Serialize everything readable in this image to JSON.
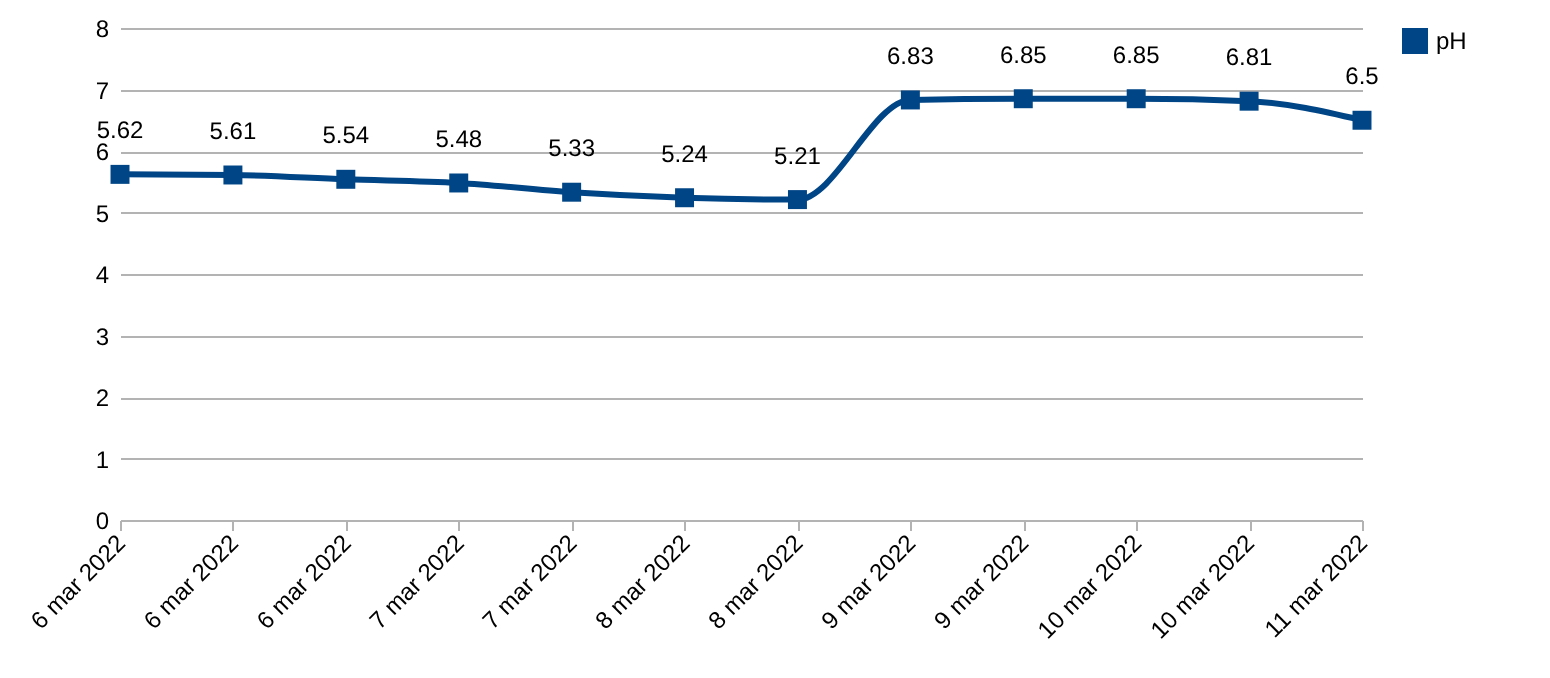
{
  "chart_data": {
    "type": "line",
    "categories": [
      "6 mar 2022",
      "6 mar 2022",
      "6 mar 2022",
      "7 mar 2022",
      "7 mar 2022",
      "8 mar 2022",
      "8 mar 2022",
      "9 mar 2022",
      "9 mar 2022",
      "10 mar 2022",
      "10 mar 2022",
      "11 mar 2022"
    ],
    "series": [
      {
        "name": "pH",
        "color": "#004586",
        "values": [
          5.62,
          5.61,
          5.54,
          5.48,
          5.33,
          5.24,
          5.21,
          6.83,
          6.85,
          6.85,
          6.81,
          6.5
        ]
      }
    ],
    "ylim": [
      0,
      8
    ],
    "yticks": [
      0,
      1,
      2,
      3,
      4,
      5,
      6,
      7,
      8
    ],
    "grid": "y",
    "legend": "right",
    "marker": "square",
    "line_style": "solid",
    "data_labels": true
  }
}
